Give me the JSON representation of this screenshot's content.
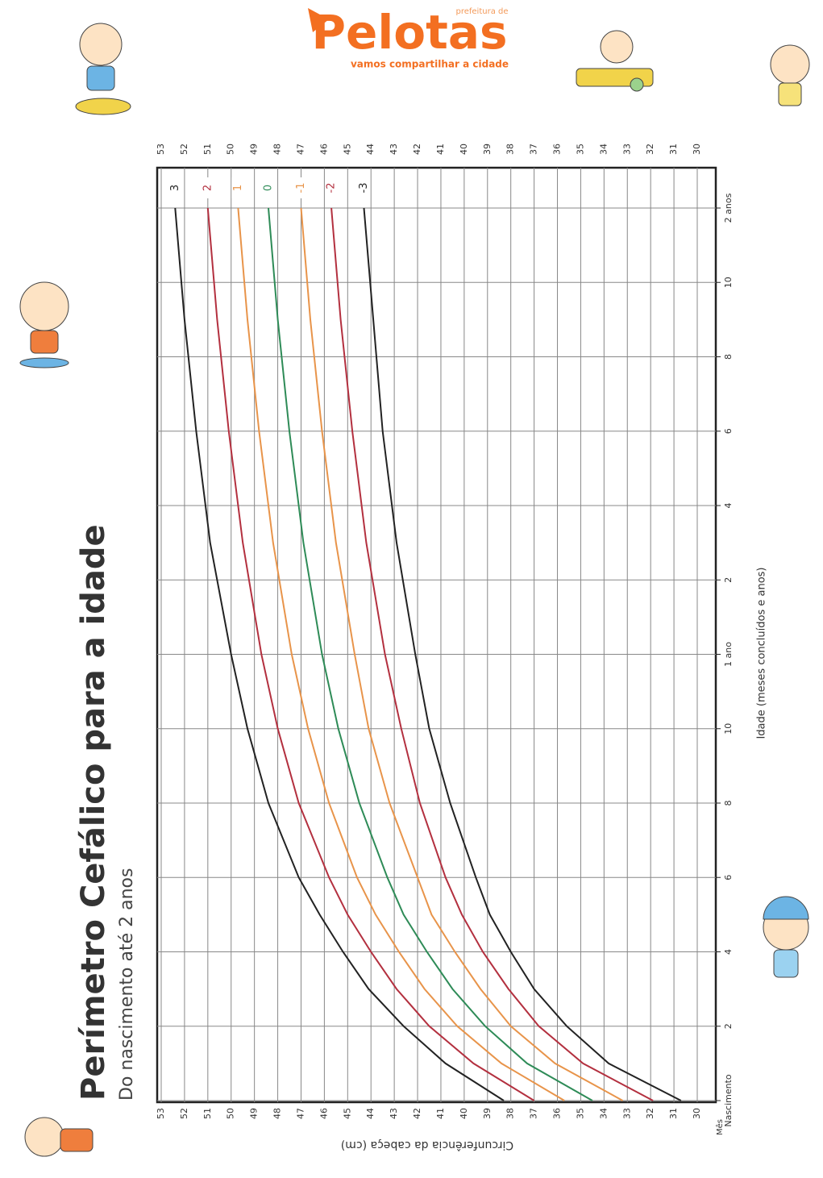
{
  "header": {
    "logo": "Pelotas",
    "logo_top": "prefeitura de",
    "logo_tagline": "vamos compartilhar a cidade"
  },
  "chart_data": {
    "type": "line",
    "title": "Perímetro Cefálico para a idade",
    "subtitle": "Do nascimento até 2 anos",
    "x_label": "Idade (meses concluídos e anos)",
    "x_unit_label": "Mês",
    "y_label": "Circunferência da cabeça (cm)",
    "x": [
      0,
      1,
      2,
      3,
      4,
      5,
      6,
      8,
      10,
      12,
      15,
      18,
      21,
      24
    ],
    "xlim": [
      0,
      24
    ],
    "xticks": [
      {
        "value": 0,
        "label": "Nascimento"
      },
      2,
      4,
      6,
      8,
      10,
      {
        "value": 12,
        "label": "1 ano"
      },
      {
        "value": 14,
        "label": "2"
      },
      {
        "value": 16,
        "label": "4"
      },
      {
        "value": 18,
        "label": "6"
      },
      {
        "value": 20,
        "label": "8"
      },
      {
        "value": 22,
        "label": "10"
      },
      {
        "value": 24,
        "label": "2 anos"
      }
    ],
    "ylim": [
      30,
      53
    ],
    "yticks": [
      30,
      31,
      32,
      33,
      34,
      35,
      36,
      37,
      38,
      39,
      40,
      41,
      42,
      43,
      44,
      45,
      46,
      47,
      48,
      49,
      50,
      51,
      52,
      53
    ],
    "grid": true,
    "series": [
      {
        "name": "3",
        "color": "#222222",
        "values": [
          38.3,
          40.8,
          42.6,
          44.1,
          45.2,
          46.2,
          47.1,
          48.4,
          49.3,
          50.0,
          50.9,
          51.5,
          52.0,
          52.4
        ]
      },
      {
        "name": "2",
        "color": "#b3303f",
        "values": [
          37.0,
          39.6,
          41.5,
          42.9,
          44.0,
          45.0,
          45.8,
          47.1,
          48.0,
          48.7,
          49.5,
          50.1,
          50.6,
          51.0
        ]
      },
      {
        "name": "1",
        "color": "#e8944a",
        "values": [
          35.7,
          38.4,
          40.3,
          41.7,
          42.8,
          43.8,
          44.6,
          45.8,
          46.7,
          47.4,
          48.2,
          48.8,
          49.3,
          49.7
        ]
      },
      {
        "name": "0",
        "color": "#2e8b57",
        "values": [
          34.5,
          37.3,
          39.1,
          40.5,
          41.6,
          42.6,
          43.3,
          44.5,
          45.4,
          46.1,
          46.9,
          47.5,
          48.0,
          48.4
        ]
      },
      {
        "name": "-1",
        "color": "#e8944a",
        "values": [
          33.2,
          36.1,
          38.0,
          39.3,
          40.4,
          41.4,
          42.0,
          43.2,
          44.1,
          44.7,
          45.5,
          46.1,
          46.6,
          47.0
        ]
      },
      {
        "name": "-2",
        "color": "#b3303f",
        "values": [
          31.9,
          34.9,
          36.8,
          38.1,
          39.2,
          40.1,
          40.8,
          41.9,
          42.7,
          43.4,
          44.2,
          44.8,
          45.3,
          45.7
        ]
      },
      {
        "name": "-3",
        "color": "#222222",
        "values": [
          30.7,
          33.8,
          35.6,
          37.0,
          38.0,
          38.9,
          39.5,
          40.6,
          41.5,
          42.1,
          42.9,
          43.5,
          43.9,
          44.3
        ]
      }
    ]
  }
}
